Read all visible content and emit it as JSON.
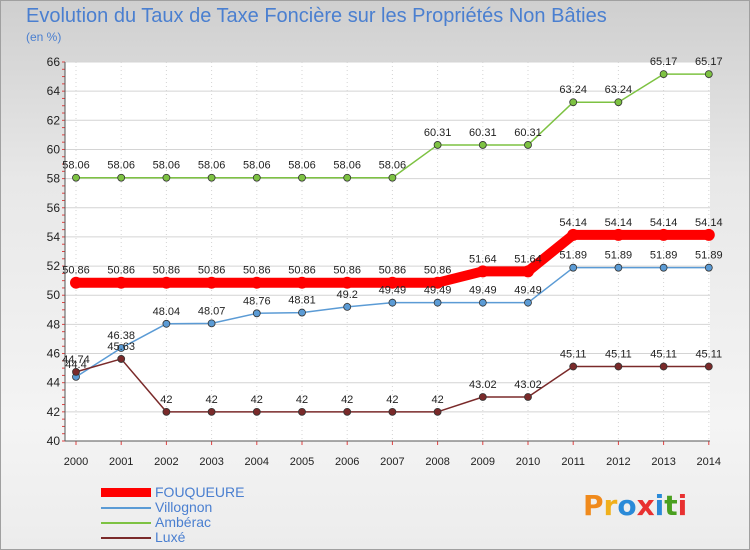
{
  "title": "Evolution du Taux de Taxe Foncière sur les Propriétés Non Bâties",
  "unit": "(en %)",
  "logo": {
    "text": "Proxiti",
    "colors": [
      "#f08a1c",
      "#f0b01c",
      "#2a8ad8",
      "#e83030",
      "#2a8ad8",
      "#4aa020",
      "#e83030"
    ]
  },
  "chart_data": {
    "type": "line",
    "title": "Evolution du Taux de Taxe Foncière sur les Propriétés Non Bâties",
    "ylabel": "(en %)",
    "xlabel": "",
    "ylim": [
      40,
      66
    ],
    "yticks": [
      40,
      42,
      44,
      46,
      48,
      50,
      52,
      54,
      56,
      58,
      60,
      62,
      64,
      66
    ],
    "categories": [
      "2000",
      "2001",
      "2002",
      "2003",
      "2004",
      "2005",
      "2006",
      "2007",
      "2008",
      "2009",
      "2010",
      "2011",
      "2012",
      "2013",
      "2014"
    ],
    "legend_position": "bottom-left",
    "series": [
      {
        "name": "FOUQUEURE",
        "color": "#ff0000",
        "emphasis": true,
        "values": [
          50.86,
          50.86,
          50.86,
          50.86,
          50.86,
          50.86,
          50.86,
          50.86,
          50.86,
          51.64,
          51.64,
          54.14,
          54.14,
          54.14,
          54.14
        ],
        "labels": [
          "50.86",
          "50.86",
          "50.86",
          "50.86",
          "50.86",
          "50.86",
          "50.86",
          "50.86",
          "50.86",
          "51.64",
          "51.64",
          "54.14",
          "54.14",
          "54.14",
          "54.14"
        ]
      },
      {
        "name": "Villognon",
        "color": "#5b9bd5",
        "emphasis": false,
        "values": [
          44.4,
          46.38,
          48.04,
          48.07,
          48.76,
          48.81,
          49.2,
          49.49,
          49.49,
          49.49,
          49.49,
          51.89,
          51.89,
          51.89,
          51.89
        ],
        "labels": [
          "44.4",
          "46.38",
          "48.04",
          "48.07",
          "48.76",
          "48.81",
          "49.2",
          "49.49",
          "49.49",
          "49.49",
          "49.49",
          "51.89",
          "51.89",
          "51.89",
          "51.89"
        ]
      },
      {
        "name": "Ambérac",
        "color": "#7dc242",
        "emphasis": false,
        "values": [
          58.06,
          58.06,
          58.06,
          58.06,
          58.06,
          58.06,
          58.06,
          58.06,
          60.31,
          60.31,
          60.31,
          63.24,
          63.24,
          65.17,
          65.17
        ],
        "labels": [
          "58.06",
          "58.06",
          "58.06",
          "58.06",
          "58.06",
          "58.06",
          "58.06",
          "58.06",
          "60.31",
          "60.31",
          "60.31",
          "63.24",
          "63.24",
          "65.17",
          "65.17"
        ]
      },
      {
        "name": "Luxé",
        "color": "#7a2a2a",
        "emphasis": false,
        "values": [
          44.74,
          45.63,
          42,
          42,
          42,
          42,
          42,
          42,
          42,
          43.02,
          43.02,
          45.11,
          45.11,
          45.11,
          45.11
        ],
        "labels": [
          "44.74",
          "45.63",
          "42",
          "42",
          "42",
          "42",
          "42",
          "42",
          "42",
          "43.02",
          "43.02",
          "45.11",
          "45.11",
          "45.11",
          "45.11"
        ]
      }
    ]
  }
}
